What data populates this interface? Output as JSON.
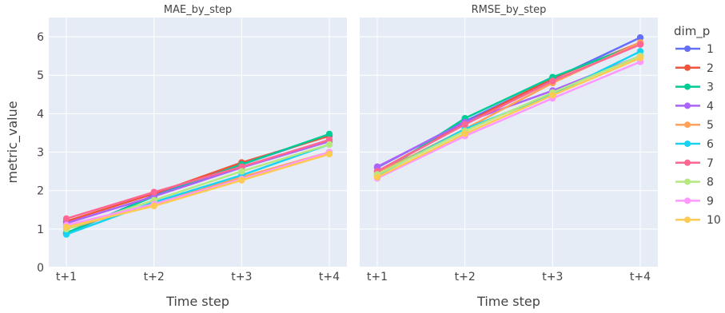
{
  "chart_data": {
    "type": "line",
    "categories": [
      "t+1",
      "t+2",
      "t+3",
      "t+4"
    ],
    "xlabel": "Time step",
    "ylabel": "metric_value",
    "ylim": [
      0,
      6.5
    ],
    "yticks": [
      0,
      1,
      2,
      3,
      4,
      5,
      6
    ],
    "grid": true,
    "legend_title": "dim_p",
    "legend_position": "right",
    "series_names": [
      "1",
      "2",
      "3",
      "4",
      "5",
      "6",
      "7",
      "8",
      "9",
      "10"
    ],
    "colors": [
      "#636efa",
      "#EF553B",
      "#00cc96",
      "#ab63fa",
      "#FFA15A",
      "#19d3f3",
      "#FF6692",
      "#B6E880",
      "#FF97FF",
      "#FECB52"
    ],
    "facets": [
      {
        "title": "MAE_by_step",
        "series": [
          {
            "name": "1",
            "values": [
              0.88,
              1.88,
              2.68,
              3.45
            ]
          },
          {
            "name": "2",
            "values": [
              1.2,
              1.92,
              2.73,
              3.42
            ]
          },
          {
            "name": "3",
            "values": [
              0.9,
              1.85,
              2.68,
              3.47
            ]
          },
          {
            "name": "4",
            "values": [
              1.15,
              1.85,
              2.6,
              3.28
            ]
          },
          {
            "name": "5",
            "values": [
              1.0,
              1.65,
              2.35,
              3.0
            ]
          },
          {
            "name": "6",
            "values": [
              0.86,
              1.7,
              2.4,
              3.2
            ]
          },
          {
            "name": "7",
            "values": [
              1.27,
              1.96,
              2.62,
              3.32
            ]
          },
          {
            "name": "8",
            "values": [
              1.0,
              1.75,
              2.5,
              3.2
            ]
          },
          {
            "name": "9",
            "values": [
              1.1,
              1.65,
              2.3,
              3.0
            ]
          },
          {
            "name": "10",
            "values": [
              1.05,
              1.6,
              2.27,
              2.95
            ]
          }
        ]
      },
      {
        "title": "RMSE_by_step",
        "series": [
          {
            "name": "1",
            "values": [
              2.6,
              3.8,
              4.9,
              5.98
            ]
          },
          {
            "name": "2",
            "values": [
              2.5,
              3.75,
              4.92,
              5.85
            ]
          },
          {
            "name": "3",
            "values": [
              2.4,
              3.88,
              4.95,
              5.82
            ]
          },
          {
            "name": "4",
            "values": [
              2.62,
              3.78,
              4.6,
              5.5
            ]
          },
          {
            "name": "5",
            "values": [
              2.45,
              3.6,
              4.8,
              5.85
            ]
          },
          {
            "name": "6",
            "values": [
              2.4,
              3.6,
              4.5,
              5.62
            ]
          },
          {
            "name": "7",
            "values": [
              2.5,
              3.72,
              4.85,
              5.8
            ]
          },
          {
            "name": "8",
            "values": [
              2.42,
              3.55,
              4.55,
              5.5
            ]
          },
          {
            "name": "9",
            "values": [
              2.32,
              3.42,
              4.4,
              5.35
            ]
          },
          {
            "name": "10",
            "values": [
              2.35,
              3.48,
              4.48,
              5.45
            ]
          }
        ]
      }
    ]
  }
}
